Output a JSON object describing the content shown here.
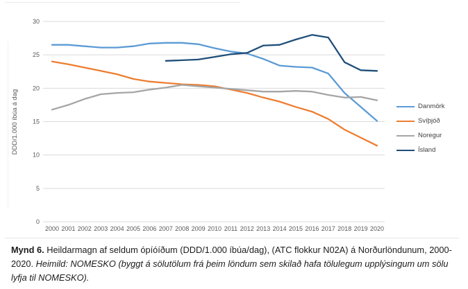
{
  "figure": {
    "caption": {
      "label": "Mynd 6.",
      "body": " Heildarmagn af seldum ópíóíðum (DDD/1.000 íbúa/dag), (ATC flokkur N02A) á Norðurlöndunum, 2000-2020. ",
      "source": "Heimild: NOMESKO (byggt á sölutölum frá þeim löndum sem skilað hafa tölulegum upplýsingum um sölu lyfja til NOMESKO)."
    }
  },
  "chart_data": {
    "type": "line",
    "title": "",
    "xlabel": "",
    "ylabel": "DDD/1.000 íbúa á dag",
    "ylim": [
      0,
      30
    ],
    "yticks": [
      0,
      5,
      10,
      15,
      20,
      25,
      30
    ],
    "grid": "horizontal",
    "legend_position": "right",
    "colors": {
      "gridline": "#d9d9d9",
      "tick_text": "#595959",
      "axis_title_text": "#595959"
    },
    "x": [
      2000,
      2001,
      2002,
      2003,
      2004,
      2005,
      2006,
      2007,
      2008,
      2009,
      2010,
      2011,
      2012,
      2013,
      2014,
      2015,
      2016,
      2017,
      2018,
      2019,
      2020
    ],
    "series": [
      {
        "name": "Danmörk",
        "color": "#5B9BD5",
        "values": [
          26.5,
          26.5,
          26.3,
          26.1,
          26.1,
          26.3,
          26.7,
          26.8,
          26.8,
          26.6,
          26.0,
          25.5,
          25.2,
          24.4,
          23.4,
          23.2,
          23.1,
          22.2,
          19.3,
          17.2,
          15.1
        ]
      },
      {
        "name": "Svíþjóð",
        "color": "#ED7D31",
        "values": [
          24.0,
          23.6,
          23.1,
          22.6,
          22.1,
          21.4,
          21.0,
          20.8,
          20.6,
          20.5,
          20.3,
          19.8,
          19.3,
          18.6,
          18.0,
          17.2,
          16.5,
          15.4,
          13.8,
          12.6,
          11.4
        ]
      },
      {
        "name": "Noregur",
        "color": "#A5A5A5",
        "values": [
          16.8,
          17.5,
          18.4,
          19.1,
          19.3,
          19.4,
          19.8,
          20.1,
          20.5,
          20.3,
          20.1,
          19.9,
          19.7,
          19.5,
          19.5,
          19.6,
          19.5,
          19.0,
          18.6,
          18.7,
          18.2
        ]
      },
      {
        "name": "Ísland",
        "color": "#1F4E79",
        "values": [
          null,
          null,
          null,
          null,
          null,
          null,
          null,
          24.1,
          24.2,
          24.3,
          24.7,
          25.1,
          25.3,
          26.4,
          26.5,
          27.3,
          28.0,
          27.6,
          23.9,
          22.7,
          22.6
        ]
      }
    ]
  }
}
